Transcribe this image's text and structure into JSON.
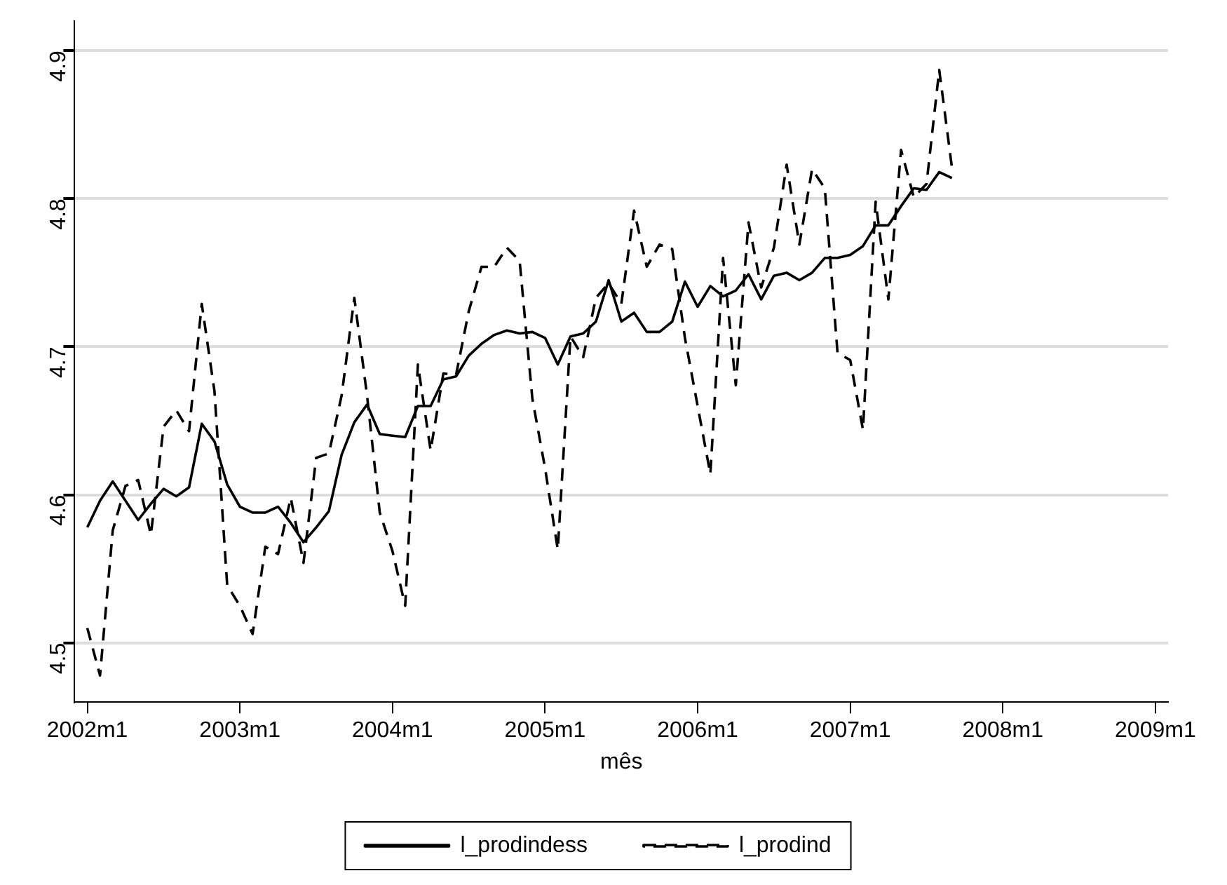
{
  "chart_data": {
    "type": "line",
    "xlabel": "mês",
    "x": [
      "2002-01",
      "2002-02",
      "2002-03",
      "2002-04",
      "2002-05",
      "2002-06",
      "2002-07",
      "2002-08",
      "2002-09",
      "2002-10",
      "2002-11",
      "2002-12",
      "2003-01",
      "2003-02",
      "2003-03",
      "2003-04",
      "2003-05",
      "2003-06",
      "2003-07",
      "2003-08",
      "2003-09",
      "2003-10",
      "2003-11",
      "2003-12",
      "2004-01",
      "2004-02",
      "2004-03",
      "2004-04",
      "2004-05",
      "2004-06",
      "2004-07",
      "2004-08",
      "2004-09",
      "2004-10",
      "2004-11",
      "2004-12",
      "2005-01",
      "2005-02",
      "2005-03",
      "2005-04",
      "2005-05",
      "2005-06",
      "2005-07",
      "2005-08",
      "2005-09",
      "2005-10",
      "2005-11",
      "2005-12",
      "2006-01",
      "2006-02",
      "2006-03",
      "2006-04",
      "2006-05",
      "2006-06",
      "2006-07",
      "2006-08",
      "2006-09",
      "2006-10",
      "2006-11",
      "2006-12",
      "2007-01",
      "2007-02",
      "2007-03",
      "2007-04",
      "2007-05",
      "2007-06",
      "2007-07",
      "2007-08",
      "2007-09"
    ],
    "series": [
      {
        "name": "l_prodindess",
        "color": "#000000",
        "line_style": "solid",
        "values": [
          4.578,
          4.596,
          4.609,
          4.596,
          4.583,
          4.594,
          4.604,
          4.599,
          4.605,
          4.648,
          4.636,
          4.607,
          4.592,
          4.588,
          4.588,
          4.592,
          4.581,
          4.568,
          4.578,
          4.589,
          4.627,
          4.649,
          4.661,
          4.641,
          4.64,
          4.639,
          4.66,
          4.66,
          4.678,
          4.68,
          4.694,
          4.702,
          4.708,
          4.711,
          4.709,
          4.71,
          4.706,
          4.688,
          4.707,
          4.709,
          4.717,
          4.745,
          4.717,
          4.723,
          4.71,
          4.71,
          4.717,
          4.744,
          4.727,
          4.741,
          4.734,
          4.738,
          4.749,
          4.732,
          4.748,
          4.75,
          4.745,
          4.75,
          4.76,
          4.76,
          4.762,
          4.768,
          4.782,
          4.782,
          4.795,
          4.807,
          4.806,
          4.818,
          4.814
        ]
      },
      {
        "name": "l_prodind",
        "color": "#000000",
        "line_style": "dashed",
        "values": [
          4.51,
          4.478,
          4.576,
          4.606,
          4.61,
          4.573,
          4.646,
          4.657,
          4.643,
          4.729,
          4.67,
          4.539,
          4.525,
          4.506,
          4.565,
          4.56,
          4.598,
          4.554,
          4.625,
          4.628,
          4.667,
          4.733,
          4.667,
          4.588,
          4.562,
          4.525,
          4.688,
          4.63,
          4.682,
          4.681,
          4.724,
          4.754,
          4.754,
          4.767,
          4.758,
          4.665,
          4.618,
          4.563,
          4.707,
          4.693,
          4.733,
          4.743,
          4.729,
          4.792,
          4.754,
          4.769,
          4.766,
          4.706,
          4.66,
          4.614,
          4.76,
          4.674,
          4.784,
          4.74,
          4.767,
          4.823,
          4.769,
          4.82,
          4.807,
          4.696,
          4.691,
          4.644,
          4.798,
          4.732,
          4.833,
          4.801,
          4.81,
          4.887,
          4.821
        ]
      }
    ],
    "xlim": [
      "2001-12",
      "2009-02"
    ],
    "xticks": [
      {
        "value": "2002-01",
        "label": "2002m1"
      },
      {
        "value": "2003-01",
        "label": "2003m1"
      },
      {
        "value": "2004-01",
        "label": "2004m1"
      },
      {
        "value": "2005-01",
        "label": "2005m1"
      },
      {
        "value": "2006-01",
        "label": "2006m1"
      },
      {
        "value": "2007-01",
        "label": "2007m1"
      },
      {
        "value": "2008-01",
        "label": "2008m1"
      },
      {
        "value": "2009-01",
        "label": "2009m1"
      }
    ],
    "ylim": [
      4.46,
      4.92
    ],
    "yticks": [
      4.5,
      4.6,
      4.7,
      4.8,
      4.9
    ],
    "grid": "y",
    "legend": "bottom",
    "marker": "none"
  }
}
